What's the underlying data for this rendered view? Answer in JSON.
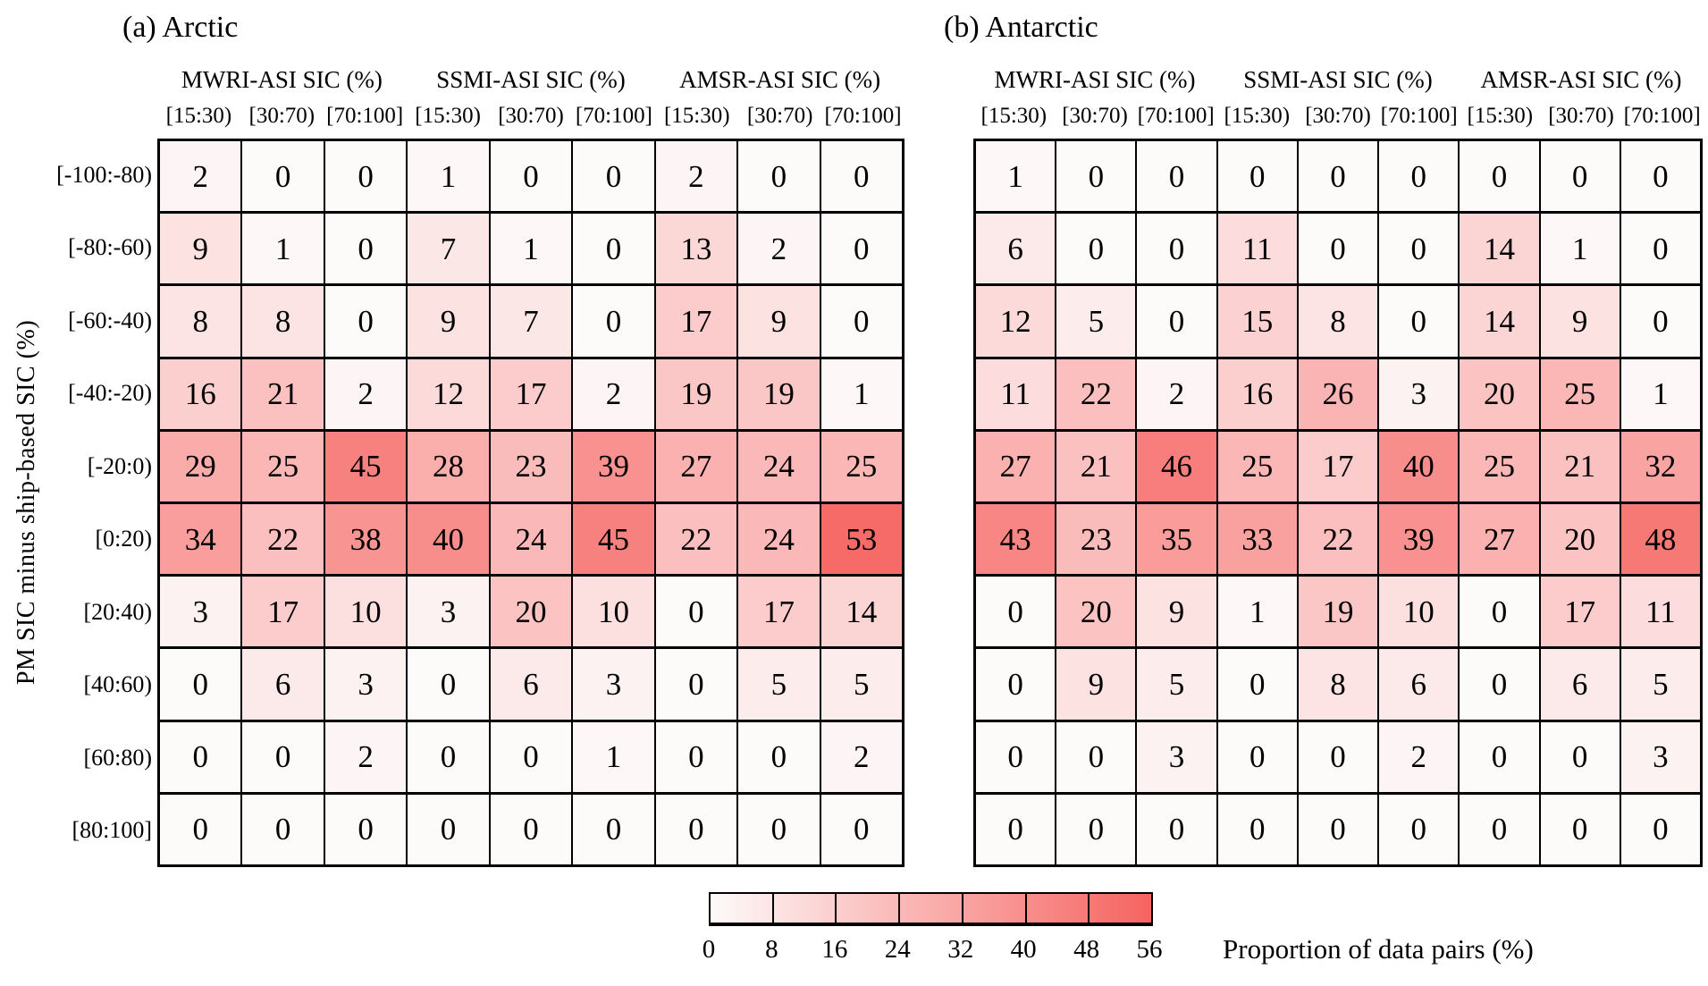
{
  "figure": {
    "ylabel": "PM SIC minus ship-based SIC (%)",
    "group_headers": [
      "MWRI-ASI SIC (%)",
      "SSMI-ASI SIC (%)",
      "AMSR-ASI SIC (%)"
    ],
    "bin_labels": [
      "[15:30)",
      "[30:70)",
      "[70:100]"
    ],
    "row_labels": [
      "[-100:-80)",
      "[-80:-60)",
      "[-60:-40)",
      "[-40:-20)",
      "[-20:0)",
      "[0:20)",
      "[20:40)",
      "[40:60)",
      "[60:80)",
      "[80:100]"
    ],
    "colorbar": {
      "ticks": [
        "0",
        "8",
        "16",
        "24",
        "32",
        "40",
        "48",
        "56"
      ],
      "label": "Proportion of data pairs (%)",
      "vmin": 0,
      "vmax": 56,
      "segments": 7,
      "color_start": "#fdfafa",
      "color_end": "#f66360"
    }
  },
  "chart_data": [
    {
      "type": "heatmap",
      "title": "(a) Arctic",
      "column_groups": [
        "MWRI-ASI SIC (%)",
        "SSMI-ASI SIC (%)",
        "AMSR-ASI SIC (%)"
      ],
      "columns": [
        "MWRI [15:30)",
        "MWRI [30:70)",
        "MWRI [70:100]",
        "SSMI [15:30)",
        "SSMI [30:70)",
        "SSMI [70:100]",
        "AMSR [15:30)",
        "AMSR [30:70)",
        "AMSR [70:100]"
      ],
      "rows": [
        "[-100:-80)",
        "[-80:-60)",
        "[-60:-40)",
        "[-40:-20)",
        "[-20:0)",
        "[0:20)",
        "[20:40)",
        "[40:60)",
        "[60:80)",
        "[80:100]"
      ],
      "ylabel": "PM SIC minus ship-based SIC (%)",
      "colorbar_label": "Proportion of data pairs (%)",
      "color_range": [
        0,
        56
      ],
      "values": [
        [
          2,
          0,
          0,
          1,
          0,
          0,
          2,
          0,
          0
        ],
        [
          9,
          1,
          0,
          7,
          1,
          0,
          13,
          2,
          0
        ],
        [
          8,
          8,
          0,
          9,
          7,
          0,
          17,
          9,
          0
        ],
        [
          16,
          21,
          2,
          12,
          17,
          2,
          19,
          19,
          1
        ],
        [
          29,
          25,
          45,
          28,
          23,
          39,
          27,
          24,
          25
        ],
        [
          34,
          22,
          38,
          40,
          24,
          45,
          22,
          24,
          53
        ],
        [
          3,
          17,
          10,
          3,
          20,
          10,
          0,
          17,
          14
        ],
        [
          0,
          6,
          3,
          0,
          6,
          3,
          0,
          5,
          5
        ],
        [
          0,
          0,
          2,
          0,
          0,
          1,
          0,
          0,
          2
        ],
        [
          0,
          0,
          0,
          0,
          0,
          0,
          0,
          0,
          0
        ]
      ]
    },
    {
      "type": "heatmap",
      "title": "(b) Antarctic",
      "column_groups": [
        "MWRI-ASI SIC (%)",
        "SSMI-ASI SIC (%)",
        "AMSR-ASI SIC (%)"
      ],
      "columns": [
        "MWRI [15:30)",
        "MWRI [30:70)",
        "MWRI [70:100]",
        "SSMI [15:30)",
        "SSMI [30:70)",
        "SSMI [70:100]",
        "AMSR [15:30)",
        "AMSR [30:70)",
        "AMSR [70:100]"
      ],
      "rows": [
        "[-100:-80)",
        "[-80:-60)",
        "[-60:-40)",
        "[-40:-20)",
        "[-20:0)",
        "[0:20)",
        "[20:40)",
        "[40:60)",
        "[60:80)",
        "[80:100]"
      ],
      "ylabel": "PM SIC minus ship-based SIC (%)",
      "colorbar_label": "Proportion of data pairs (%)",
      "color_range": [
        0,
        56
      ],
      "values": [
        [
          1,
          0,
          0,
          0,
          0,
          0,
          0,
          0,
          0
        ],
        [
          6,
          0,
          0,
          11,
          0,
          0,
          14,
          1,
          0
        ],
        [
          12,
          5,
          0,
          15,
          8,
          0,
          14,
          9,
          0
        ],
        [
          11,
          22,
          2,
          16,
          26,
          3,
          20,
          25,
          1
        ],
        [
          27,
          21,
          46,
          25,
          17,
          40,
          25,
          21,
          32
        ],
        [
          43,
          23,
          35,
          33,
          22,
          39,
          27,
          20,
          48
        ],
        [
          0,
          20,
          9,
          1,
          19,
          10,
          0,
          17,
          11
        ],
        [
          0,
          9,
          5,
          0,
          8,
          6,
          0,
          6,
          5
        ],
        [
          0,
          0,
          3,
          0,
          0,
          2,
          0,
          0,
          3
        ],
        [
          0,
          0,
          0,
          0,
          0,
          0,
          0,
          0,
          0
        ]
      ]
    }
  ]
}
